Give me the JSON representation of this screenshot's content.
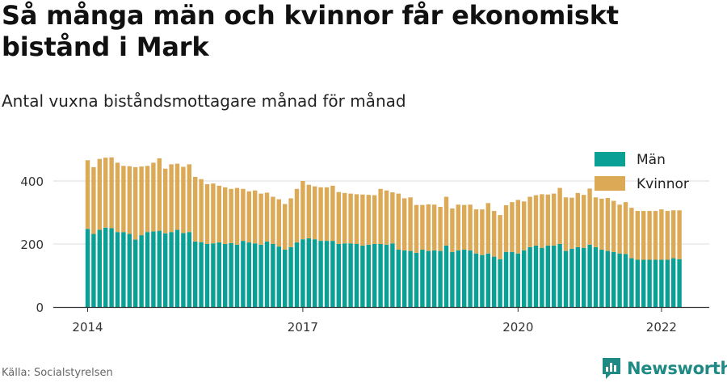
{
  "title": "Så många män och kvinnor får ekonomiskt bistånd i Mark",
  "subtitle": "Antal vuxna biståndsmottagare månad för månad",
  "source": "Källa: Socialstyrelsen",
  "brand": "Newsworthy",
  "colors": {
    "men": "#0aa096",
    "women": "#dcaa57",
    "grid": "#dddddd",
    "axis": "#333333",
    "brand": "#1f8a84"
  },
  "chart_data": {
    "type": "bar",
    "stacked": true,
    "title": "",
    "xlabel": "",
    "ylabel": "",
    "ylim": [
      0,
      480
    ],
    "yticks": [
      0,
      200,
      400
    ],
    "xticks": [
      {
        "label": "2014",
        "index": 0
      },
      {
        "label": "2017",
        "index": 36
      },
      {
        "label": "2020",
        "index": 72
      },
      {
        "label": "2022",
        "index": 96
      }
    ],
    "start": "2014-01",
    "legend": {
      "position": "top-right"
    },
    "series": [
      {
        "name": "Män",
        "values": [
          248,
          232,
          245,
          252,
          250,
          238,
          238,
          232,
          214,
          228,
          238,
          240,
          242,
          234,
          238,
          245,
          235,
          238,
          208,
          206,
          200,
          202,
          205,
          200,
          203,
          198,
          210,
          205,
          202,
          198,
          208,
          200,
          192,
          182,
          190,
          205,
          215,
          218,
          215,
          210,
          210,
          210,
          200,
          202,
          202,
          200,
          195,
          198,
          200,
          200,
          198,
          202,
          182,
          180,
          178,
          172,
          182,
          178,
          180,
          178,
          195,
          175,
          180,
          182,
          180,
          170,
          165,
          170,
          160,
          152,
          175,
          175,
          170,
          180,
          190,
          195,
          188,
          195,
          195,
          200,
          178,
          185,
          190,
          188,
          198,
          190,
          182,
          178,
          175,
          170,
          168,
          155,
          150,
          150,
          150,
          150,
          150,
          150,
          155,
          152
        ],
        "color": "#0aa096"
      },
      {
        "name": "Kvinnor",
        "values": [
          218,
          212,
          225,
          222,
          225,
          220,
          210,
          215,
          230,
          218,
          210,
          218,
          230,
          205,
          215,
          210,
          210,
          215,
          205,
          200,
          190,
          190,
          180,
          180,
          172,
          180,
          165,
          162,
          168,
          162,
          155,
          150,
          150,
          145,
          155,
          170,
          185,
          170,
          168,
          170,
          170,
          175,
          165,
          160,
          158,
          158,
          162,
          158,
          155,
          175,
          172,
          162,
          178,
          165,
          170,
          152,
          142,
          148,
          145,
          140,
          155,
          138,
          145,
          142,
          145,
          140,
          145,
          160,
          145,
          140,
          148,
          158,
          170,
          155,
          160,
          160,
          170,
          162,
          165,
          178,
          170,
          162,
          172,
          168,
          178,
          158,
          162,
          168,
          162,
          155,
          165,
          160,
          155,
          155,
          155,
          155,
          160,
          155,
          152,
          155
        ],
        "color": "#dcaa57"
      }
    ]
  }
}
